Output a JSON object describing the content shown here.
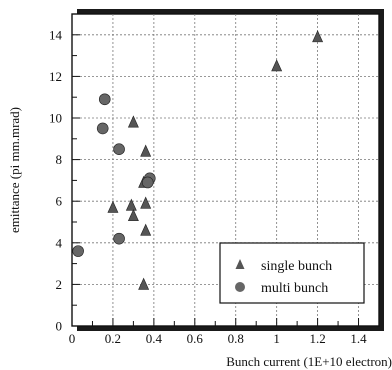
{
  "chart_data": {
    "type": "scatter",
    "xlabel": "Bunch current (1E+10 electron)",
    "ylabel": "emittance (pi mm.mrad)",
    "xlim": [
      0,
      1.5
    ],
    "ylim": [
      0,
      15
    ],
    "x_ticks": [
      "0",
      "0.2",
      "0.4",
      "0.6",
      "0.8",
      "1",
      "1.2",
      "1.4"
    ],
    "y_ticks": [
      "0",
      "2",
      "4",
      "6",
      "8",
      "10",
      "12",
      "14"
    ],
    "grid": true,
    "legend_position": "bottom-right",
    "series": [
      {
        "name": "single bunch",
        "marker": "triangle",
        "color": "#555555",
        "points": [
          {
            "x": 0.3,
            "y": 9.8
          },
          {
            "x": 0.36,
            "y": 8.4
          },
          {
            "x": 0.35,
            "y": 6.9
          },
          {
            "x": 0.2,
            "y": 5.7
          },
          {
            "x": 0.29,
            "y": 5.8
          },
          {
            "x": 0.36,
            "y": 5.9
          },
          {
            "x": 0.3,
            "y": 5.3
          },
          {
            "x": 0.36,
            "y": 4.6
          },
          {
            "x": 0.35,
            "y": 2.0
          },
          {
            "x": 1.0,
            "y": 12.5
          },
          {
            "x": 1.2,
            "y": 13.9
          }
        ]
      },
      {
        "name": "multi bunch",
        "marker": "circle",
        "color": "#666666",
        "points": [
          {
            "x": 0.16,
            "y": 10.9
          },
          {
            "x": 0.15,
            "y": 9.5
          },
          {
            "x": 0.23,
            "y": 8.5
          },
          {
            "x": 0.38,
            "y": 7.1
          },
          {
            "x": 0.37,
            "y": 6.9
          },
          {
            "x": 0.23,
            "y": 4.2
          },
          {
            "x": 0.03,
            "y": 3.6
          }
        ]
      }
    ]
  }
}
